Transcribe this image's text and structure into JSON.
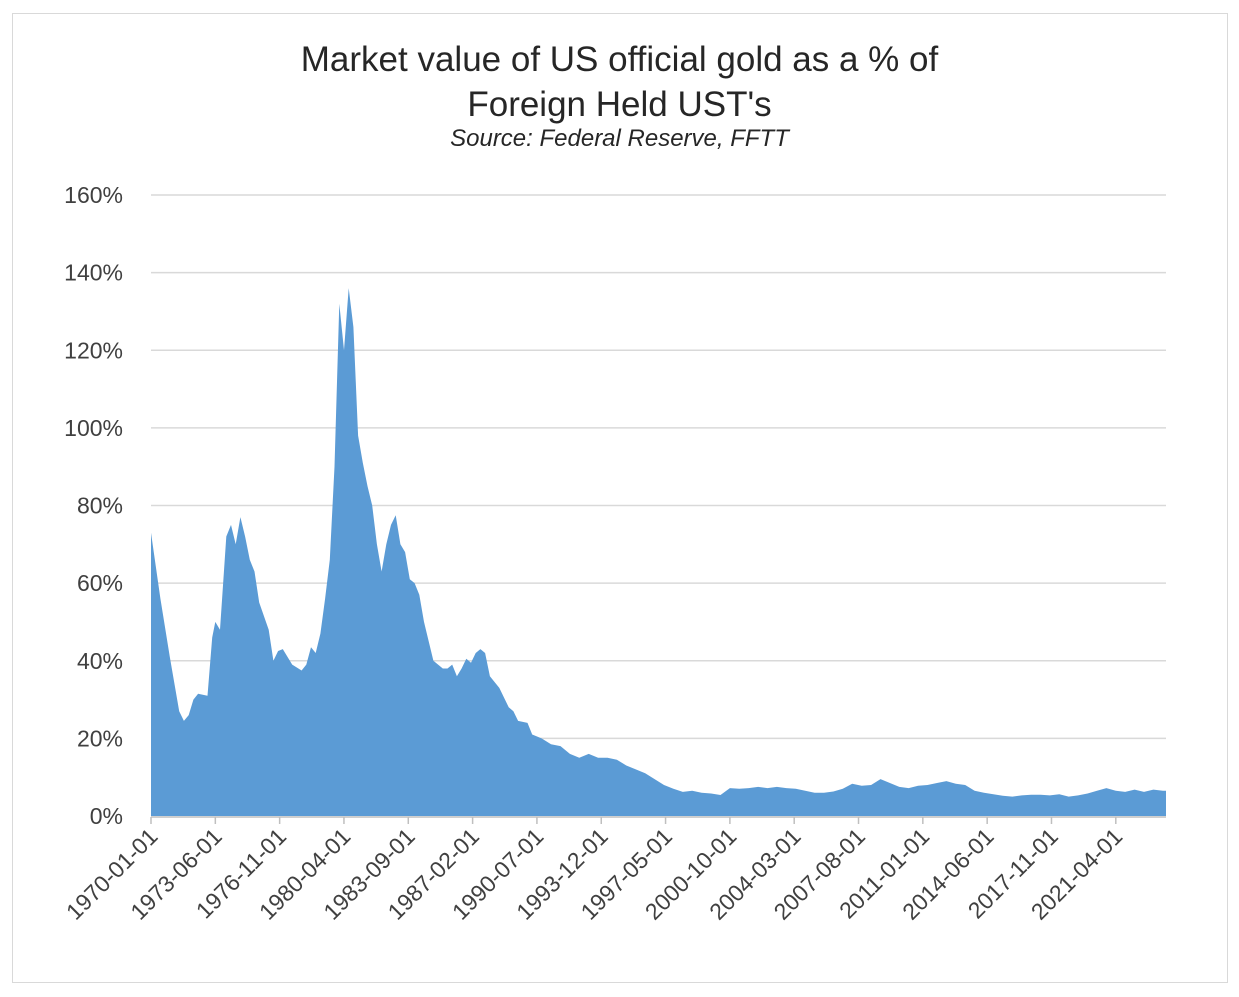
{
  "chart_data": {
    "type": "area",
    "title": "Market value of US official gold as a % of",
    "title_line2": "Foreign Held UST's",
    "subtitle": "Source: Federal Reserve, FFTT",
    "xlabel": "",
    "ylabel": "",
    "ylim": [
      0,
      160
    ],
    "y_ticks": [
      "0%",
      "20%",
      "40%",
      "60%",
      "80%",
      "100%",
      "120%",
      "140%",
      "160%"
    ],
    "x_tick_labels": [
      "1970-01-01",
      "1973-06-01",
      "1976-11-01",
      "1980-04-01",
      "1983-09-01",
      "1987-02-01",
      "1990-07-01",
      "1993-12-01",
      "1997-05-01",
      "2000-10-01",
      "2004-03-01",
      "2007-08-01",
      "2011-01-01",
      "2014-06-01",
      "2017-11-01",
      "2021-04-01"
    ],
    "grid": true,
    "series_color": "#5b9bd5",
    "series": [
      {
        "values": [
          [
            "1970-01",
            73
          ],
          [
            "1970-07",
            56
          ],
          [
            "1971-01",
            41
          ],
          [
            "1971-07",
            27
          ],
          [
            "1971-10",
            24.5
          ],
          [
            "1972-01",
            26
          ],
          [
            "1972-04",
            30
          ],
          [
            "1972-07",
            31.5
          ],
          [
            "1973-01",
            31
          ],
          [
            "1973-04",
            46
          ],
          [
            "1973-06",
            50
          ],
          [
            "1973-09",
            48
          ],
          [
            "1974-01",
            72
          ],
          [
            "1974-04",
            75
          ],
          [
            "1974-07",
            70
          ],
          [
            "1974-10",
            77
          ],
          [
            "1975-01",
            72
          ],
          [
            "1975-04",
            66
          ],
          [
            "1975-07",
            63
          ],
          [
            "1975-10",
            55
          ],
          [
            "1976-04",
            48
          ],
          [
            "1976-07",
            40
          ],
          [
            "1976-10",
            42.5
          ],
          [
            "1977-01",
            43
          ],
          [
            "1977-07",
            39
          ],
          [
            "1978-01",
            37.5
          ],
          [
            "1978-04",
            39
          ],
          [
            "1978-07",
            43.5
          ],
          [
            "1978-10",
            42
          ],
          [
            "1979-01",
            47
          ],
          [
            "1979-04",
            56
          ],
          [
            "1979-07",
            66
          ],
          [
            "1979-10",
            90
          ],
          [
            "1980-01",
            132
          ],
          [
            "1980-04",
            120
          ],
          [
            "1980-07",
            136
          ],
          [
            "1980-10",
            126
          ],
          [
            "1981-01",
            98
          ],
          [
            "1981-04",
            91
          ],
          [
            "1981-07",
            85
          ],
          [
            "1981-10",
            80
          ],
          [
            "1982-01",
            70
          ],
          [
            "1982-04",
            63
          ],
          [
            "1982-07",
            70
          ],
          [
            "1982-10",
            75
          ],
          [
            "1983-01",
            77.5
          ],
          [
            "1983-04",
            70
          ],
          [
            "1983-07",
            68
          ],
          [
            "1983-10",
            61
          ],
          [
            "1984-01",
            60
          ],
          [
            "1984-04",
            57
          ],
          [
            "1984-07",
            50
          ],
          [
            "1985-01",
            40
          ],
          [
            "1985-04",
            39
          ],
          [
            "1985-07",
            38
          ],
          [
            "1985-10",
            38
          ],
          [
            "1986-01",
            39
          ],
          [
            "1986-04",
            36
          ],
          [
            "1986-07",
            38
          ],
          [
            "1986-10",
            40.5
          ],
          [
            "1987-01",
            39.5
          ],
          [
            "1987-04",
            42
          ],
          [
            "1987-07",
            43
          ],
          [
            "1987-10",
            42
          ],
          [
            "1988-01",
            36
          ],
          [
            "1988-07",
            33
          ],
          [
            "1989-01",
            28
          ],
          [
            "1989-04",
            27
          ],
          [
            "1989-07",
            24.5
          ],
          [
            "1990-01",
            24
          ],
          [
            "1990-04",
            21
          ],
          [
            "1990-10",
            20
          ],
          [
            "1991-04",
            18.5
          ],
          [
            "1991-10",
            18
          ],
          [
            "1992-04",
            16
          ],
          [
            "1992-10",
            15
          ],
          [
            "1993-04",
            16
          ],
          [
            "1993-10",
            15
          ],
          [
            "1994-04",
            15
          ],
          [
            "1994-10",
            14.5
          ],
          [
            "1995-04",
            13
          ],
          [
            "1995-10",
            12
          ],
          [
            "1996-04",
            11
          ],
          [
            "1996-10",
            9.5
          ],
          [
            "1997-04",
            8
          ],
          [
            "1997-10",
            7
          ],
          [
            "1998-04",
            6.2
          ],
          [
            "1998-10",
            6.5
          ],
          [
            "1999-04",
            6
          ],
          [
            "1999-10",
            5.8
          ],
          [
            "2000-04",
            5.4
          ],
          [
            "2000-10",
            7.2
          ],
          [
            "2001-04",
            7
          ],
          [
            "2001-10",
            7.2
          ],
          [
            "2002-04",
            7.5
          ],
          [
            "2002-10",
            7.2
          ],
          [
            "2003-04",
            7.5
          ],
          [
            "2003-10",
            7.2
          ],
          [
            "2004-04",
            7
          ],
          [
            "2004-10",
            6.5
          ],
          [
            "2005-04",
            6
          ],
          [
            "2005-10",
            6
          ],
          [
            "2006-04",
            6.3
          ],
          [
            "2006-10",
            7
          ],
          [
            "2007-04",
            8.3
          ],
          [
            "2007-10",
            7.8
          ],
          [
            "2008-04",
            8
          ],
          [
            "2008-10",
            9.5
          ],
          [
            "2009-04",
            8.5
          ],
          [
            "2009-10",
            7.5
          ],
          [
            "2010-04",
            7.2
          ],
          [
            "2010-10",
            7.8
          ],
          [
            "2011-04",
            8
          ],
          [
            "2011-10",
            8.5
          ],
          [
            "2012-04",
            9
          ],
          [
            "2012-10",
            8.3
          ],
          [
            "2013-04",
            8
          ],
          [
            "2013-10",
            6.5
          ],
          [
            "2014-04",
            6
          ],
          [
            "2014-10",
            5.6
          ],
          [
            "2015-04",
            5.2
          ],
          [
            "2015-10",
            5
          ],
          [
            "2016-04",
            5.3
          ],
          [
            "2016-10",
            5.5
          ],
          [
            "2017-04",
            5.5
          ],
          [
            "2017-10",
            5.3
          ],
          [
            "2018-04",
            5.6
          ],
          [
            "2018-10",
            5
          ],
          [
            "2019-04",
            5.3
          ],
          [
            "2019-10",
            5.8
          ],
          [
            "2020-04",
            6.5
          ],
          [
            "2020-10",
            7.2
          ],
          [
            "2021-04",
            6.5
          ],
          [
            "2021-10",
            6.2
          ],
          [
            "2022-04",
            6.8
          ],
          [
            "2022-10",
            6.2
          ],
          [
            "2023-04",
            6.8
          ],
          [
            "2023-10",
            6.5
          ]
        ]
      }
    ]
  }
}
